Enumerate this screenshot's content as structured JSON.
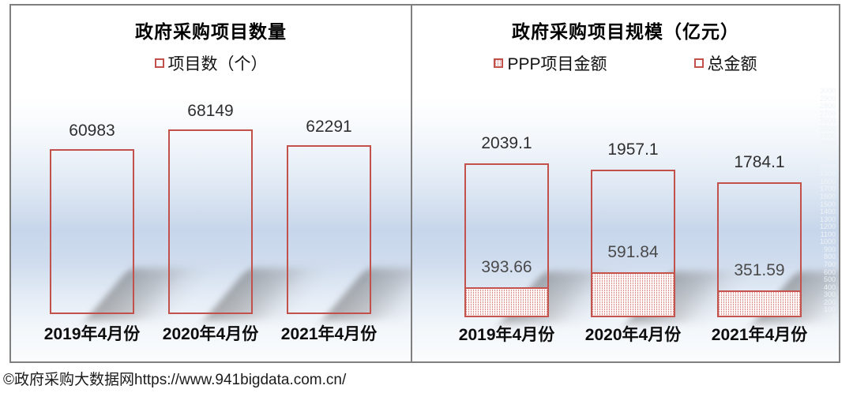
{
  "footer": "©政府采购大数据网https://www.941bigdata.com.cn/",
  "colors": {
    "bar_border": "#c2504b",
    "frame_border": "#7f7f7f",
    "shadow_gray": "#9a9a9a",
    "panel_gradient_blue": "#c7d6eb"
  },
  "chart_data": [
    {
      "type": "bar",
      "title": "政府采购项目数量",
      "legend": [
        {
          "label": "项目数（个）",
          "swatch": "hollow"
        }
      ],
      "categories": [
        "2019年4月份",
        "2020年4月份",
        "2021年4月份"
      ],
      "series": [
        {
          "name": "项目数（个）",
          "style": "hollow",
          "values": [
            60983,
            68149,
            62291
          ]
        }
      ],
      "ylim": [
        0,
        70000
      ],
      "grid": false,
      "legend_position": "top"
    },
    {
      "type": "bar",
      "title": "政府采购项目规模（亿元）",
      "legend": [
        {
          "label": "PPP项目金额",
          "swatch": "hatched"
        },
        {
          "label": "总金额",
          "swatch": "hollow"
        }
      ],
      "categories": [
        "2019年4月份",
        "2020年4月份",
        "2021年4月份"
      ],
      "series": [
        {
          "name": "总金额",
          "style": "hollow",
          "values": [
            2039.1,
            1957.1,
            1784.1
          ]
        },
        {
          "name": "PPP项目金额",
          "style": "hatched",
          "values": [
            393.66,
            591.84,
            351.59
          ]
        }
      ],
      "ylim": [
        0,
        3000
      ],
      "y_axis_faint_ticks": [
        3000,
        2900,
        2800,
        2700,
        2600,
        2500,
        2400,
        2300,
        2200,
        2100,
        2000,
        1900,
        1800,
        1700,
        1600,
        1500,
        1400,
        1300,
        1200,
        1100,
        1000,
        900,
        800,
        700,
        600,
        500,
        400,
        300,
        200,
        100,
        0
      ],
      "grid": false,
      "legend_position": "top"
    }
  ]
}
